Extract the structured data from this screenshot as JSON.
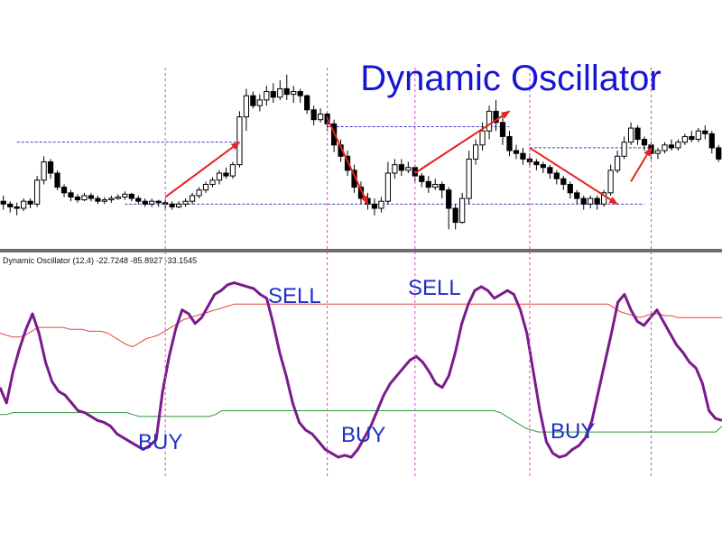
{
  "title": "Dynamic Oscillator",
  "indicator_header": "Dynamic Oscillator (12,4) -22.7248 -85.8927 -33.1545",
  "signals": {
    "buy1": "BUY",
    "buy2": "BUY",
    "buy3": "BUY",
    "sell1": "SELL",
    "sell2": "SELL"
  },
  "colors": {
    "title": "#1515d6",
    "signal_text": "#1e2fc8",
    "oscillator": "#7a1a8c",
    "upper_band": "#e8433a",
    "lower_band": "#2e9a3a",
    "arrow": "#e82020",
    "level_lines": "#3a3ad0",
    "vertical_markers": "#e040c8",
    "candle": "#000000"
  },
  "chart_data": [
    {
      "type": "candlestick",
      "title": "Dynamic Oscillator",
      "candles": [
        [
          60,
          58,
          64,
          54
        ],
        [
          58,
          56,
          60,
          52
        ],
        [
          56,
          55,
          59,
          50
        ],
        [
          55,
          60,
          62,
          53
        ],
        [
          60,
          58,
          62,
          55
        ],
        [
          58,
          75,
          78,
          56
        ],
        [
          75,
          88,
          92,
          72
        ],
        [
          88,
          80,
          90,
          76
        ],
        [
          80,
          70,
          82,
          68
        ],
        [
          70,
          66,
          72,
          63
        ],
        [
          66,
          63,
          68,
          60
        ],
        [
          63,
          61,
          65,
          59
        ],
        [
          61,
          64,
          66,
          60
        ],
        [
          64,
          62,
          66,
          60
        ],
        [
          62,
          60,
          64,
          58
        ],
        [
          60,
          61,
          63,
          58
        ],
        [
          61,
          62,
          64,
          59
        ],
        [
          62,
          63,
          65,
          61
        ],
        [
          63,
          65,
          67,
          61
        ],
        [
          65,
          62,
          66,
          60
        ],
        [
          62,
          60,
          64,
          58
        ],
        [
          60,
          58,
          62,
          56
        ],
        [
          58,
          60,
          62,
          56
        ],
        [
          60,
          59,
          61,
          56
        ],
        [
          59,
          58,
          61,
          55
        ],
        [
          58,
          56,
          60,
          54
        ],
        [
          56,
          58,
          60,
          55
        ],
        [
          58,
          60,
          62,
          56
        ],
        [
          60,
          64,
          66,
          58
        ],
        [
          64,
          68,
          70,
          62
        ],
        [
          68,
          72,
          74,
          66
        ],
        [
          72,
          75,
          77,
          70
        ],
        [
          75,
          80,
          82,
          72
        ],
        [
          80,
          78,
          84,
          76
        ],
        [
          78,
          86,
          88,
          76
        ],
        [
          86,
          120,
          124,
          84
        ],
        [
          120,
          135,
          140,
          110
        ],
        [
          135,
          128,
          138,
          126
        ],
        [
          128,
          132,
          136,
          124
        ],
        [
          132,
          138,
          142,
          128
        ],
        [
          138,
          134,
          144,
          130
        ],
        [
          134,
          140,
          146,
          132
        ],
        [
          140,
          136,
          150,
          132
        ],
        [
          136,
          138,
          142,
          130
        ],
        [
          138,
          135,
          140,
          130
        ],
        [
          135,
          125,
          136,
          122
        ],
        [
          125,
          118,
          128,
          114
        ],
        [
          118,
          122,
          126,
          116
        ],
        [
          122,
          115,
          124,
          110
        ],
        [
          115,
          100,
          118,
          95
        ],
        [
          100,
          92,
          104,
          88
        ],
        [
          92,
          82,
          96,
          78
        ],
        [
          82,
          70,
          86,
          66
        ],
        [
          70,
          62,
          74,
          58
        ],
        [
          62,
          58,
          66,
          54
        ],
        [
          58,
          55,
          62,
          50
        ],
        [
          55,
          60,
          63,
          52
        ],
        [
          60,
          80,
          88,
          58
        ],
        [
          80,
          86,
          90,
          76
        ],
        [
          86,
          82,
          90,
          78
        ],
        [
          82,
          84,
          88,
          80
        ],
        [
          84,
          78,
          86,
          74
        ],
        [
          78,
          74,
          80,
          70
        ],
        [
          74,
          70,
          78,
          66
        ],
        [
          70,
          72,
          76,
          68
        ],
        [
          72,
          68,
          74,
          62
        ],
        [
          68,
          55,
          70,
          40
        ],
        [
          55,
          45,
          58,
          40
        ],
        [
          45,
          62,
          66,
          44
        ],
        [
          62,
          90,
          96,
          58
        ],
        [
          90,
          100,
          104,
          86
        ],
        [
          100,
          110,
          116,
          96
        ],
        [
          110,
          124,
          128,
          104
        ],
        [
          124,
          116,
          132,
          110
        ],
        [
          116,
          106,
          120,
          100
        ],
        [
          106,
          96,
          110,
          92
        ],
        [
          96,
          94,
          100,
          90
        ],
        [
          94,
          90,
          98,
          86
        ],
        [
          90,
          88,
          94,
          84
        ],
        [
          88,
          86,
          90,
          82
        ],
        [
          86,
          84,
          88,
          80
        ],
        [
          84,
          80,
          86,
          76
        ],
        [
          80,
          76,
          82,
          72
        ],
        [
          76,
          72,
          78,
          68
        ],
        [
          72,
          66,
          74,
          62
        ],
        [
          66,
          62,
          68,
          58
        ],
        [
          62,
          58,
          64,
          54
        ],
        [
          58,
          62,
          64,
          55
        ],
        [
          62,
          58,
          64,
          54
        ],
        [
          58,
          66,
          68,
          56
        ],
        [
          66,
          82,
          86,
          64
        ],
        [
          82,
          92,
          96,
          80
        ],
        [
          92,
          102,
          106,
          90
        ],
        [
          102,
          112,
          116,
          100
        ],
        [
          112,
          104,
          114,
          100
        ],
        [
          104,
          100,
          106,
          96
        ],
        [
          100,
          94,
          102,
          90
        ],
        [
          94,
          96,
          98,
          90
        ],
        [
          96,
          100,
          102,
          94
        ],
        [
          100,
          98,
          104,
          96
        ],
        [
          98,
          102,
          104,
          96
        ],
        [
          102,
          106,
          108,
          100
        ],
        [
          106,
          104,
          110,
          102
        ],
        [
          104,
          110,
          112,
          102
        ],
        [
          110,
          108,
          114,
          104
        ],
        [
          108,
          98,
          110,
          94
        ],
        [
          98,
          90,
          100,
          88
        ]
      ],
      "level_lines": [
        {
          "from_index": 2,
          "to_index": 35,
          "price": 102
        },
        {
          "from_index": 18,
          "to_index": 95,
          "price": 58
        },
        {
          "from_index": 48,
          "to_index": 75,
          "price": 113
        },
        {
          "from_index": 78,
          "to_index": 96,
          "price": 98
        }
      ],
      "arrows": [
        {
          "from": [
            24,
            63
          ],
          "to": [
            35,
            102
          ]
        },
        {
          "from": [
            48,
            119
          ],
          "to": [
            54,
            58
          ]
        },
        {
          "from": [
            61,
            80
          ],
          "to": [
            75,
            124
          ]
        },
        {
          "from": [
            78,
            98
          ],
          "to": [
            91,
            58
          ]
        },
        {
          "from": [
            93,
            74
          ],
          "to": [
            96,
            98
          ]
        }
      ]
    },
    {
      "type": "line",
      "title": "Dynamic Oscillator (12,4) -22.7248 -85.8927 -33.1545",
      "ylim": [
        -100,
        0
      ],
      "vertical_markers_index": [
        24,
        48,
        61,
        78,
        96
      ],
      "series": [
        {
          "values": [
            -58,
            -66,
            -50,
            -38,
            -28,
            -20,
            -30,
            -45,
            -55,
            -60,
            -62,
            -66,
            -70,
            -71,
            -73,
            -75,
            -76,
            -78,
            -82,
            -84,
            -86,
            -88,
            -90,
            -88,
            -85,
            -60,
            -42,
            -28,
            -18,
            -20,
            -25,
            -22,
            -16,
            -10,
            -8,
            -5,
            -4,
            -5,
            -6,
            -7,
            -10,
            -12,
            -25,
            -40,
            -52,
            -66,
            -76,
            -80,
            -82,
            -86,
            -90,
            -92,
            -94,
            -93,
            -94,
            -90,
            -84,
            -78,
            -70,
            -62,
            -56,
            -52,
            -48,
            -44,
            -42,
            -45,
            -50,
            -56,
            -58,
            -52,
            -40,
            -25,
            -15,
            -8,
            -6,
            -8,
            -12,
            -10,
            -8,
            -10,
            -18,
            -30,
            -50,
            -70,
            -86,
            -92,
            -94,
            -93,
            -90,
            -88,
            -84,
            -75,
            -60,
            -45,
            -30,
            -14,
            -10,
            -18,
            -24,
            -26,
            -22,
            -18,
            -24,
            -30,
            -36,
            -40,
            -45,
            -48,
            -56,
            -70,
            -74,
            -75
          ]
        },
        {
          "values": [
            -30,
            -31,
            -32,
            -32,
            -31,
            -29,
            -27,
            -27,
            -27,
            -27,
            -27,
            -28,
            -28,
            -28,
            -29,
            -29,
            -29,
            -30,
            -32,
            -34,
            -36,
            -37,
            -35,
            -33,
            -32,
            -31,
            -29,
            -27,
            -25,
            -23,
            -22,
            -21,
            -20,
            -19,
            -18,
            -17,
            -16,
            -15,
            -15,
            -15,
            -15,
            -15,
            -15,
            -15,
            -15,
            -15,
            -15,
            -15,
            -15,
            -15,
            -15,
            -15,
            -15,
            -15,
            -15,
            -15,
            -15,
            -15,
            -15,
            -15,
            -15,
            -15,
            -15,
            -15,
            -15,
            -15,
            -15,
            -15,
            -15,
            -15,
            -15,
            -15,
            -15,
            -15,
            -15,
            -15,
            -15,
            -15,
            -15,
            -15,
            -15,
            -15,
            -15,
            -15,
            -15,
            -15,
            -15,
            -15,
            -15,
            -15,
            -15,
            -15,
            -15,
            -15,
            -15,
            -15,
            -15,
            -17,
            -19,
            -20,
            -21,
            -22,
            -21,
            -20,
            -20,
            -21,
            -21,
            -22,
            -22,
            -22,
            -22,
            -22,
            -22,
            -22,
            -22
          ]
        },
        {
          "values": [
            -72,
            -72,
            -71,
            -71,
            -71,
            -71,
            -71,
            -71,
            -71,
            -71,
            -71,
            -71,
            -71,
            -71,
            -71,
            -71,
            -71,
            -71,
            -71,
            -71,
            -71,
            -72,
            -73,
            -73,
            -73,
            -73,
            -73,
            -73,
            -73,
            -73,
            -73,
            -73,
            -73,
            -73,
            -72,
            -70,
            -70,
            -70,
            -70,
            -70,
            -70,
            -70,
            -70,
            -70,
            -70,
            -70,
            -70,
            -70,
            -70,
            -70,
            -70,
            -70,
            -70,
            -70,
            -70,
            -70,
            -70,
            -70,
            -70,
            -70,
            -70,
            -70,
            -70,
            -70,
            -70,
            -70,
            -70,
            -70,
            -70,
            -70,
            -70,
            -70,
            -70,
            -70,
            -70,
            -70,
            -70,
            -70,
            -70,
            -71,
            -73,
            -75,
            -77,
            -79,
            -80,
            -81,
            -81,
            -81,
            -81,
            -81,
            -81,
            -81,
            -81,
            -81,
            -81,
            -81,
            -81,
            -81,
            -81,
            -81,
            -81,
            -81,
            -81,
            -81,
            -81,
            -81,
            -81,
            -81,
            -81,
            -81,
            -81,
            -81,
            -81,
            -81,
            -78
          ]
        }
      ]
    }
  ]
}
